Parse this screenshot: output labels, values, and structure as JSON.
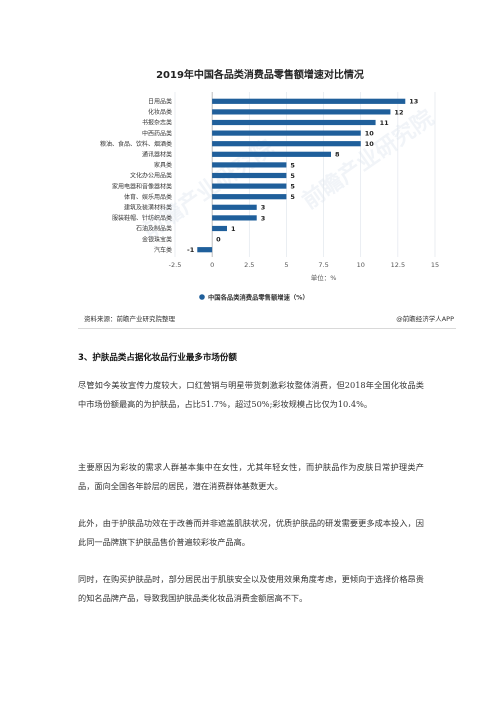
{
  "chart_data": {
    "type": "bar",
    "title": "2019年中国各品类消费品零售额增速对比情况",
    "categories": [
      "日用品类",
      "化妆品类",
      "书报杂志类",
      "中西药品类",
      "粮油、食品、饮料、烟酒类",
      "通讯器材类",
      "家具类",
      "文化办公用品类",
      "家用电器和音像器材类",
      "体育、娱乐用品类",
      "建筑及装潢材料类",
      "服装鞋帽、针纺织品类",
      "石油及制品类",
      "金银珠宝类",
      "汽车类"
    ],
    "values": [
      13,
      12,
      11,
      10,
      10,
      8,
      5,
      5,
      5,
      5,
      3,
      3,
      1,
      0,
      -1
    ],
    "value_labels": [
      "13",
      "12",
      "11",
      "10",
      "10",
      "8",
      "5",
      "5",
      "5",
      "5",
      "3",
      "3",
      "1",
      "0",
      "-1"
    ],
    "xlim": [
      -2.5,
      15
    ],
    "xticks": [
      "-2.5",
      "0",
      "2.5",
      "5",
      "7.5",
      "10",
      "12.5",
      "15"
    ],
    "xlabel": "单位：%",
    "legend": "中国各品类消费品零售额增速（%）",
    "legend_position": "bottom",
    "grid": true,
    "bar_color": "#1f5f9b"
  },
  "figure": {
    "watermark": "前瞻产业研究院"
  },
  "source": {
    "left": "资料来源：前瞻产业研究院整理",
    "right": "@前瞻经济学人APP"
  },
  "section": {
    "heading": "3、护肤品类占据化妆品行业最多市场份额"
  },
  "paragraphs": {
    "p1": "尽管如今美妆宣传力度较大，口红营销与明星带货刺激彩妆整体消费，但2018年全国化妆品类中市场份额最高的为护肤品，占比51.7%，超过50%;彩妆规模占比仅为10.4%。",
    "p2": "主要原因为彩妆的需求人群基本集中在女性，尤其年轻女性，而护肤品作为皮肤日常护理类产品，面向全国各年龄层的居民，潜在消费群体基数更大。",
    "p3": "此外，由于护肤品功效在于改善而并非遮盖肌肤状况，优质护肤品的研发需要更多成本投入，因此同一品牌旗下护肤品售价普遍较彩妆产品高。",
    "p4": "同时，在购买护肤品时，部分居民出于肌肤安全以及使用效果角度考虑，更倾向于选择价格昂贵的知名品牌产品，导致我国护肤品类化妆品消费金额居高不下。"
  }
}
